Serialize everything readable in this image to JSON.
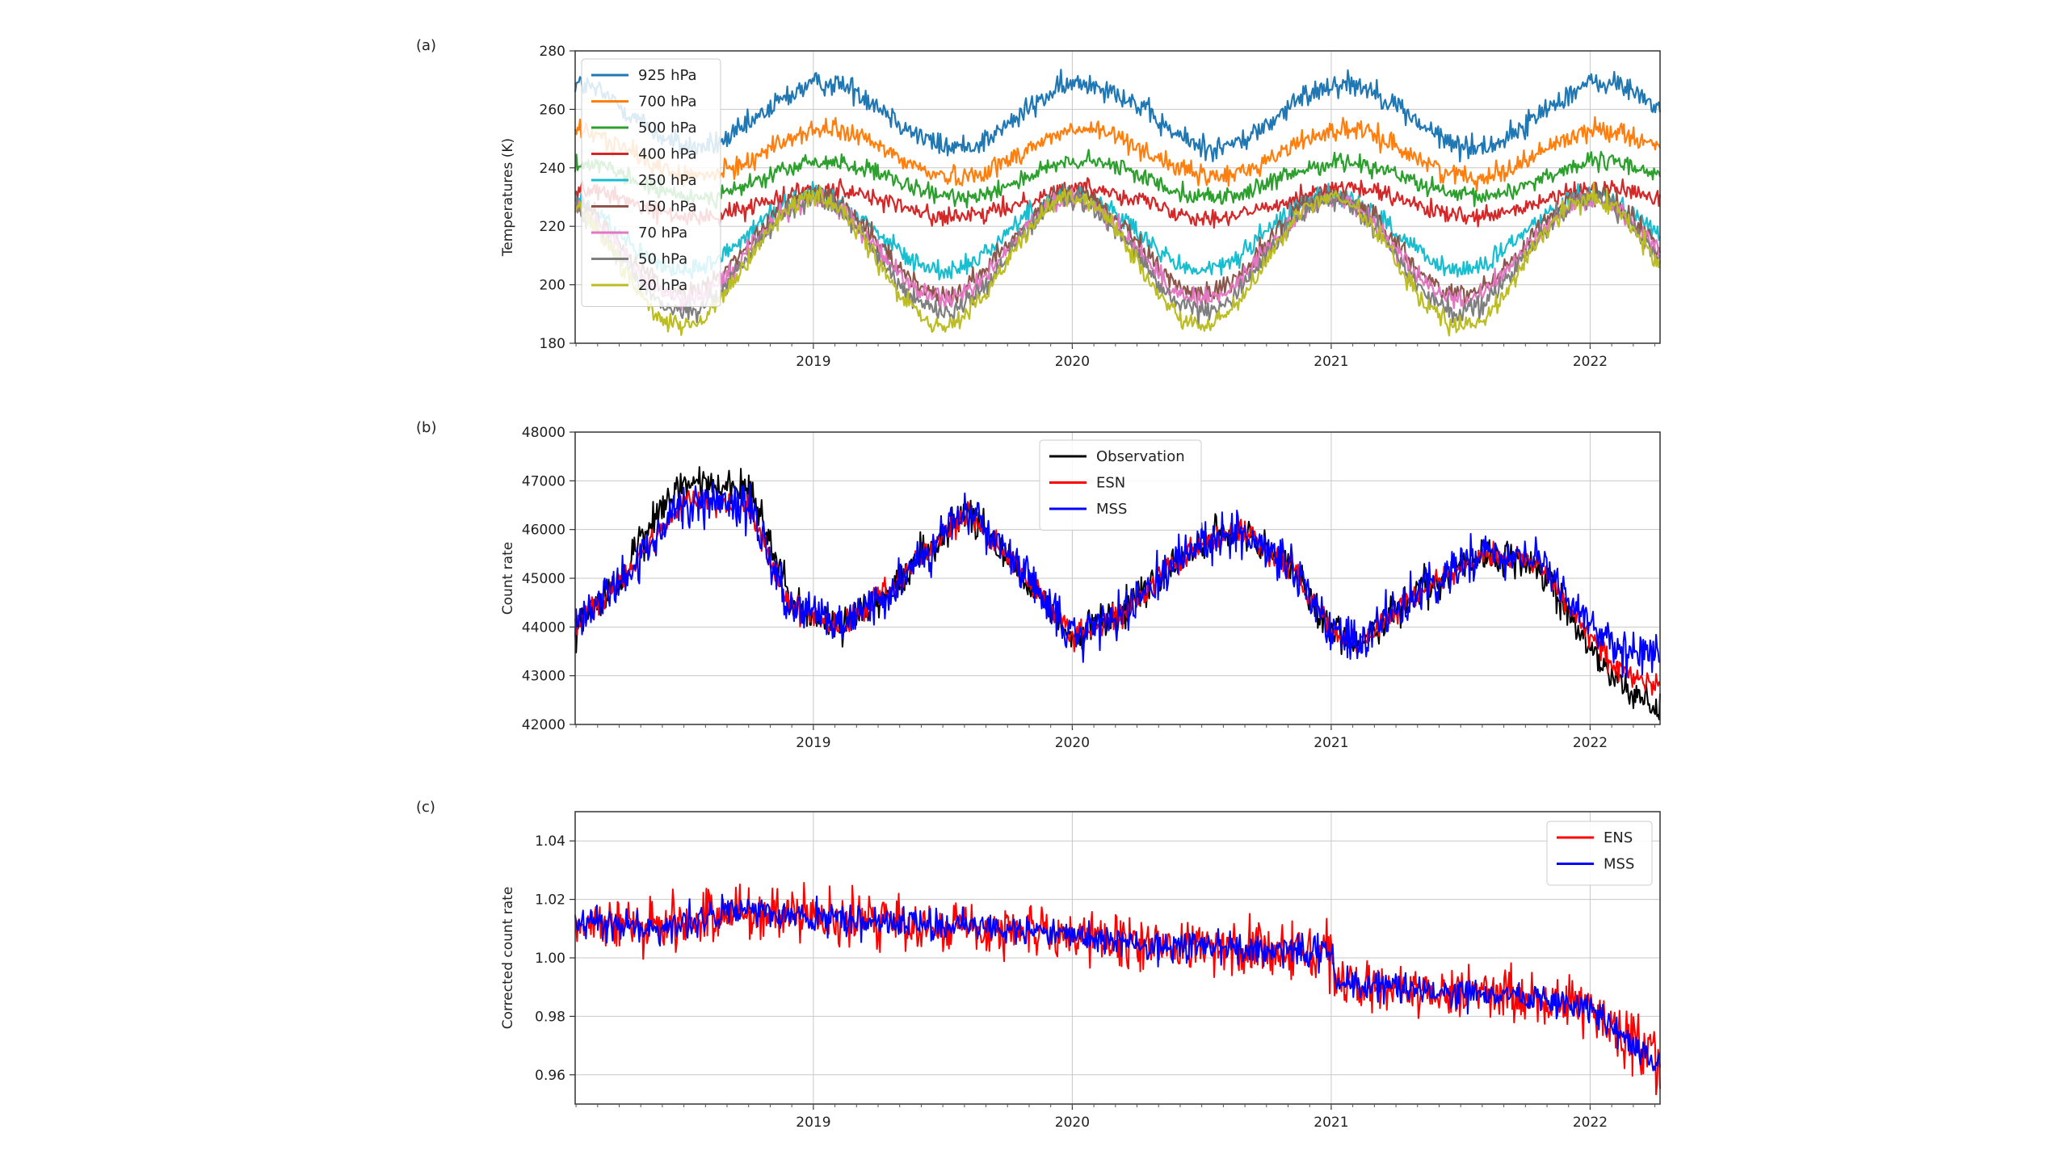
{
  "chart_data": [
    {
      "panel": "(a)",
      "type": "line",
      "ylabel": "Temperatures (K)",
      "ylim": [
        180,
        280
      ],
      "yticks": [
        180,
        200,
        220,
        240,
        260,
        280
      ],
      "xlim": [
        2018.08,
        2022.27
      ],
      "xticks": [
        2019,
        2020,
        2021,
        2022
      ],
      "grid": true,
      "legend": "upper-left",
      "series": [
        {
          "name": "925 hPa",
          "color": "#1f77b4",
          "mean": 258,
          "amp": 11,
          "phase": 0.05,
          "noise": 3.0
        },
        {
          "name": "700 hPa",
          "color": "#ff7f0e",
          "mean": 245,
          "amp": 8,
          "phase": 0.05,
          "noise": 2.5
        },
        {
          "name": "500 hPa",
          "color": "#2ca02c",
          "mean": 236,
          "amp": 6,
          "phase": 0.05,
          "noise": 2.2
        },
        {
          "name": "400 hPa",
          "color": "#d62728",
          "mean": 228,
          "amp": 5,
          "phase": 0.05,
          "noise": 2.2
        },
        {
          "name": "250 hPa",
          "color": "#17becf",
          "mean": 218,
          "amp": 13,
          "phase": 0.0,
          "noise": 2.5
        },
        {
          "name": "150 hPa",
          "color": "#8c564b",
          "mean": 214,
          "amp": 17,
          "phase": 0.0,
          "noise": 2.5
        },
        {
          "name": "70 hPa",
          "color": "#e377c2",
          "mean": 212,
          "amp": 17,
          "phase": 0.0,
          "noise": 2.5
        },
        {
          "name": "50 hPa",
          "color": "#7f7f7f",
          "mean": 210,
          "amp": 19,
          "phase": 0.0,
          "noise": 2.5
        },
        {
          "name": "20 hPa",
          "color": "#bcbd22",
          "mean": 208,
          "amp": 22,
          "phase": 0.0,
          "noise": 2.5
        }
      ]
    },
    {
      "panel": "(b)",
      "type": "line",
      "ylabel": "Count rate",
      "ylim": [
        42000,
        48000
      ],
      "yticks": [
        42000,
        43000,
        44000,
        45000,
        46000,
        47000,
        48000
      ],
      "xlim": [
        2018.08,
        2022.27
      ],
      "xticks": [
        2019,
        2020,
        2021,
        2022
      ],
      "grid": true,
      "legend": "upper-center",
      "series": [
        {
          "name": "Observation",
          "color": "#000000"
        },
        {
          "name": "ESN",
          "color": "#ff0000"
        },
        {
          "name": "MSS",
          "color": "#0000ff"
        }
      ],
      "keypoints": [
        [
          2018.08,
          44000
        ],
        [
          2018.3,
          45200
        ],
        [
          2018.5,
          46600
        ],
        [
          2018.75,
          46500
        ],
        [
          2018.9,
          44500
        ],
        [
          2019.1,
          44000
        ],
        [
          2019.3,
          44800
        ],
        [
          2019.6,
          46400
        ],
        [
          2019.85,
          44800
        ],
        [
          2020.0,
          43800
        ],
        [
          2020.2,
          44300
        ],
        [
          2020.45,
          45600
        ],
        [
          2020.65,
          46000
        ],
        [
          2020.85,
          45200
        ],
        [
          2021.0,
          43900
        ],
        [
          2021.1,
          43600
        ],
        [
          2021.3,
          44600
        ],
        [
          2021.6,
          45500
        ],
        [
          2021.8,
          45300
        ],
        [
          2022.0,
          43800
        ],
        [
          2022.1,
          43200
        ],
        [
          2022.27,
          42800
        ]
      ]
    },
    {
      "panel": "(c)",
      "type": "line",
      "ylabel": "Corrected count rate",
      "ylim": [
        0.95,
        1.05
      ],
      "yticks": [
        0.96,
        0.98,
        1.0,
        1.02,
        1.04
      ],
      "ytick_labels": [
        "0.96",
        "0.98",
        "1.00",
        "1.02",
        "1.04"
      ],
      "xlim": [
        2018.08,
        2022.27
      ],
      "xticks": [
        2019,
        2020,
        2021,
        2022
      ],
      "grid": true,
      "legend": "upper-right",
      "series": [
        {
          "name": "ENS",
          "color": "#ff0000"
        },
        {
          "name": "MSS",
          "color": "#0000ff"
        }
      ],
      "keypoints": [
        [
          2018.08,
          1.012
        ],
        [
          2018.4,
          1.01
        ],
        [
          2018.7,
          1.016
        ],
        [
          2019.0,
          1.014
        ],
        [
          2019.3,
          1.012
        ],
        [
          2019.7,
          1.01
        ],
        [
          2020.0,
          1.008
        ],
        [
          2020.3,
          1.004
        ],
        [
          2020.7,
          1.003
        ],
        [
          2021.0,
          1.002
        ],
        [
          2021.02,
          0.992
        ],
        [
          2021.4,
          0.988
        ],
        [
          2021.8,
          0.986
        ],
        [
          2022.0,
          0.982
        ],
        [
          2022.27,
          0.963
        ]
      ]
    }
  ]
}
